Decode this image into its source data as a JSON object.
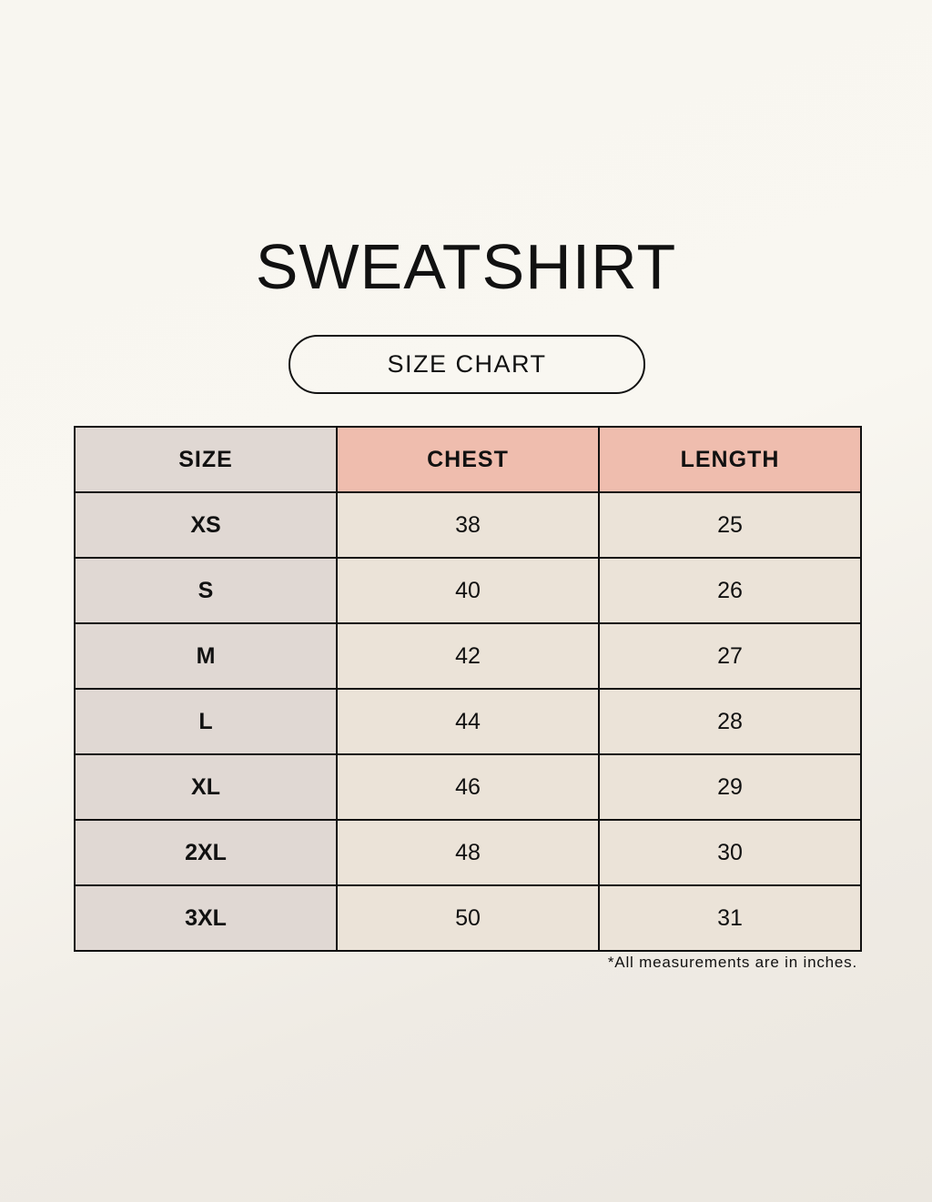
{
  "title": "SWEATSHIRT",
  "subtitle": "SIZE CHART",
  "colors": {
    "size_column": "#e0d8d3",
    "header_accent": "#efbdae",
    "value_cells": "#ebe3d8",
    "border": "#111111"
  },
  "table": {
    "headers": [
      "SIZE",
      "CHEST",
      "LENGTH"
    ],
    "rows": [
      [
        "XS",
        "38",
        "25"
      ],
      [
        "S",
        "40",
        "26"
      ],
      [
        "M",
        "42",
        "27"
      ],
      [
        "L",
        "44",
        "28"
      ],
      [
        "XL",
        "46",
        "29"
      ],
      [
        "2XL",
        "48",
        "30"
      ],
      [
        "3XL",
        "50",
        "31"
      ]
    ]
  },
  "footnote": "*All measurements are in inches."
}
